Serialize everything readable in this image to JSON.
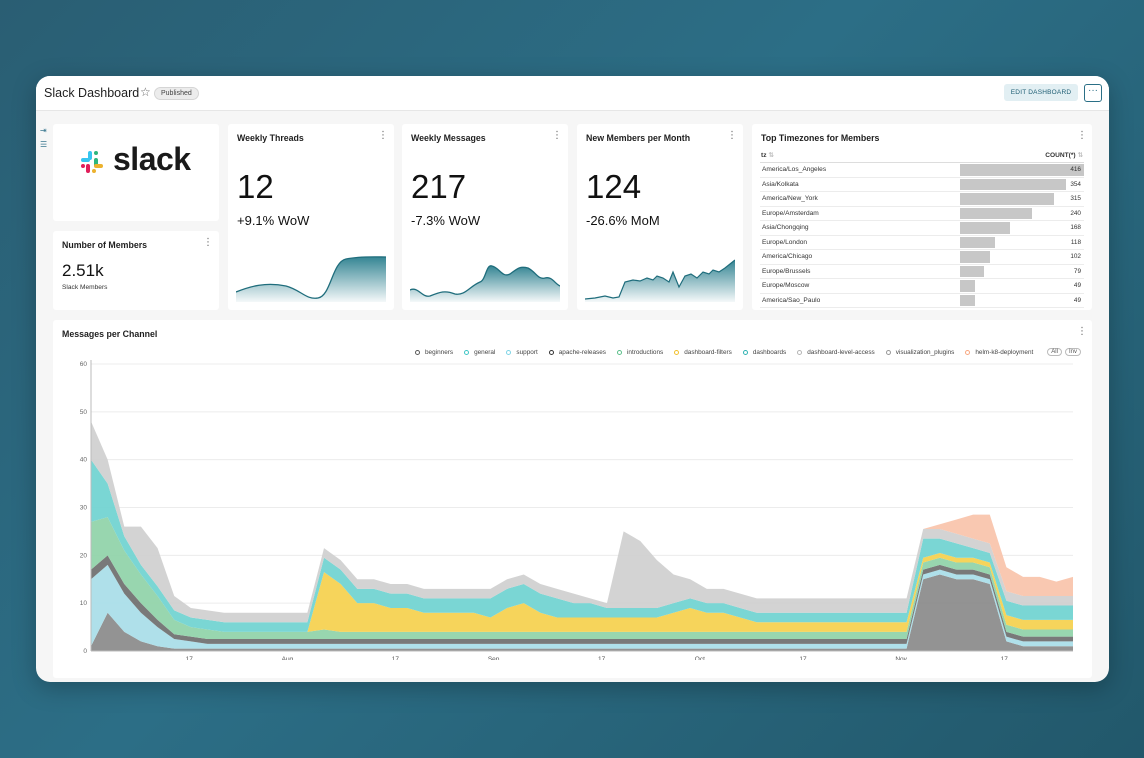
{
  "header": {
    "title": "Slack Dashboard",
    "badge": "Published",
    "edit_label": "EDIT DASHBOARD",
    "more_label": "···"
  },
  "logo": {
    "wordmark": "slack"
  },
  "members_card": {
    "title": "Number of Members",
    "value": "2.51k",
    "caption": "Slack Members"
  },
  "weekly_threads": {
    "title": "Weekly Threads",
    "value": "12",
    "change": "+9.1% WoW"
  },
  "weekly_messages": {
    "title": "Weekly Messages",
    "value": "217",
    "change": "-7.3% WoW"
  },
  "new_members": {
    "title": "New Members per Month",
    "value": "124",
    "change": "-26.6% MoM"
  },
  "timezones": {
    "title": "Top Timezones for Members",
    "col_tz": "tz",
    "col_count": "COUNT(*)",
    "max": 416,
    "rows": [
      {
        "tz": "America/Los_Angeles",
        "count": "416",
        "n": 416
      },
      {
        "tz": "Asia/Kolkata",
        "count": "354",
        "n": 354
      },
      {
        "tz": "America/New_York",
        "count": "315",
        "n": 315
      },
      {
        "tz": "Europe/Amsterdam",
        "count": "240",
        "n": 240
      },
      {
        "tz": "Asia/Chongqing",
        "count": "168",
        "n": 168
      },
      {
        "tz": "Europe/London",
        "count": "118",
        "n": 118
      },
      {
        "tz": "America/Chicago",
        "count": "102",
        "n": 102
      },
      {
        "tz": "Europe/Brussels",
        "count": "79",
        "n": 79
      },
      {
        "tz": "Europe/Moscow",
        "count": "49",
        "n": 49
      },
      {
        "tz": "America/Sao_Paulo",
        "count": "49",
        "n": 49
      }
    ]
  },
  "messages_chart": {
    "title": "Messages per Channel",
    "legend_all": "All",
    "legend_inv": "Inv",
    "legend": [
      {
        "name": "beginners",
        "color": "#5a5a5a"
      },
      {
        "name": "general",
        "color": "#3fc6c6"
      },
      {
        "name": "support",
        "color": "#7fd4e6"
      },
      {
        "name": "apache-releases",
        "color": "#333333"
      },
      {
        "name": "introductions",
        "color": "#5bbf8a"
      },
      {
        "name": "dashboard-filters",
        "color": "#f2c12e"
      },
      {
        "name": "dashboards",
        "color": "#2fb3b3"
      },
      {
        "name": "dashboard-level-access",
        "color": "#b5b5b5"
      },
      {
        "name": "visualization_plugins",
        "color": "#999999"
      },
      {
        "name": "helm-k8-deployment",
        "color": "#f8a882"
      }
    ]
  },
  "chart_data": [
    {
      "type": "area",
      "title": "Messages per Channel",
      "y_ticks": [
        "0",
        "10",
        "20",
        "30",
        "40",
        "50",
        "60"
      ],
      "x_ticks": [
        "17",
        "Aug",
        "17",
        "Sep",
        "17",
        "Oct",
        "17",
        "Nov",
        "17"
      ],
      "ylim": [
        0,
        60
      ],
      "legend_position": "top-right",
      "series": [
        {
          "name": "beginners",
          "color": "#8a8a8a",
          "values": [
            1,
            8,
            4,
            2,
            1,
            0.5,
            0.5,
            0.5,
            0.5,
            0.5,
            0.5,
            0.5,
            0.5,
            0.5,
            0.5,
            0.5,
            0.5,
            0.5,
            0.5,
            0.5,
            0.5,
            0.5,
            0.5,
            0.5,
            0.5,
            0.5,
            0.5,
            0.5,
            0.5,
            0.5,
            0.5,
            0.5,
            0.5,
            0.5,
            0.5,
            0.5,
            0.5,
            0.5,
            0.5,
            0.5,
            0.5,
            0.5,
            0.5,
            0.5,
            0.5,
            0.5,
            0.5,
            0.5,
            0.5,
            0.5,
            15,
            16,
            15,
            15,
            14,
            2,
            1,
            1,
            1,
            1
          ]
        },
        {
          "name": "support",
          "color": "#a8dde8",
          "values": [
            14,
            10,
            8,
            6,
            4,
            2,
            1.5,
            1,
            1,
            1,
            1,
            1,
            1,
            1,
            1,
            1,
            1,
            1,
            1,
            1,
            1,
            1,
            1,
            1,
            1,
            1,
            1,
            1,
            1,
            1,
            1,
            1,
            1,
            1,
            1,
            1,
            1,
            1,
            1,
            1,
            1,
            1,
            1,
            1,
            1,
            1,
            1,
            1,
            1,
            1,
            1,
            1,
            1,
            1,
            1,
            1,
            1,
            1,
            1,
            1
          ]
        },
        {
          "name": "apache-releases",
          "color": "#6e6e6e",
          "values": [
            2,
            2,
            2,
            2,
            1.5,
            1,
            1,
            1,
            1,
            1,
            1,
            1,
            1,
            1,
            1,
            1,
            1,
            1,
            1,
            1,
            1,
            1,
            1,
            1,
            1,
            1,
            1,
            1,
            1,
            1,
            1,
            1,
            1,
            1,
            1,
            1,
            1,
            1,
            1,
            1,
            1,
            1,
            1,
            1,
            1,
            1,
            1,
            1,
            1,
            1,
            1,
            1,
            1,
            1,
            1,
            1,
            1,
            1,
            1,
            1
          ]
        },
        {
          "name": "introductions",
          "color": "#8fd3a8",
          "values": [
            10,
            8,
            7,
            6,
            5,
            3,
            2,
            2,
            1.5,
            1.5,
            1.5,
            1.5,
            1.5,
            1.5,
            2,
            1.5,
            1.5,
            1.5,
            1.5,
            1.5,
            1.5,
            1.5,
            1.5,
            1.5,
            1.5,
            1.5,
            1.5,
            1.5,
            1.5,
            1.5,
            1.5,
            1.5,
            1.5,
            1.5,
            1.5,
            1.5,
            1.5,
            1.5,
            1.5,
            1.5,
            1.5,
            1.5,
            1.5,
            1.5,
            1.5,
            1.5,
            1.5,
            1.5,
            1.5,
            1.5,
            1.5,
            1.5,
            1.5,
            1.5,
            1.5,
            1.5,
            1.5,
            1.5,
            1.5,
            1.5
          ]
        },
        {
          "name": "dashboard-filters",
          "color": "#f5d04d",
          "values": [
            0,
            0,
            0,
            0,
            0,
            0,
            0,
            0,
            0,
            0,
            0,
            0,
            0,
            0,
            12,
            10,
            6,
            6,
            5,
            5,
            4,
            4,
            4,
            4,
            3,
            5,
            6,
            4,
            3,
            3,
            3,
            3,
            3,
            3,
            3,
            4,
            5,
            4,
            4,
            3,
            2,
            2,
            2,
            2,
            2,
            2,
            2,
            2,
            2,
            2,
            1,
            1,
            1,
            1,
            1,
            2,
            2,
            2,
            2,
            2
          ]
        },
        {
          "name": "general",
          "color": "#6fd3d0",
          "values": [
            13,
            7,
            3,
            2,
            2,
            2,
            2,
            2,
            2,
            2,
            2,
            2,
            2,
            2,
            3,
            3,
            3,
            3,
            3,
            3,
            3,
            3,
            3,
            3,
            4,
            4,
            4,
            4,
            4,
            3,
            3,
            2,
            2,
            2,
            2,
            2,
            2,
            2,
            2,
            2,
            2,
            2,
            2,
            2,
            2,
            2,
            2,
            2,
            2,
            2,
            4,
            3,
            3,
            2,
            2,
            3,
            3,
            3,
            3,
            3
          ]
        },
        {
          "name": "dashboard-level-access",
          "color": "#cfcfcf",
          "values": [
            8,
            5,
            2,
            8,
            8,
            3,
            2,
            2,
            2,
            2,
            2,
            2,
            2,
            2,
            2,
            2,
            2,
            2,
            2,
            2,
            2,
            2,
            2,
            2,
            2,
            2,
            2,
            2,
            2,
            2,
            1,
            1,
            16,
            14,
            10,
            6,
            4,
            3,
            3,
            3,
            3,
            3,
            3,
            3,
            3,
            3,
            3,
            3,
            3,
            3,
            2,
            2,
            2,
            2,
            2,
            2,
            2,
            2,
            2,
            2
          ]
        },
        {
          "name": "helm-k8-deployment",
          "color": "#f9c3aa",
          "values": [
            0,
            0,
            0,
            0,
            0,
            0,
            0,
            0,
            0,
            0,
            0,
            0,
            0,
            0,
            0,
            0,
            0,
            0,
            0,
            0,
            0,
            0,
            0,
            0,
            0,
            0,
            0,
            0,
            0,
            0,
            0,
            0,
            0,
            0,
            0,
            0,
            0,
            0,
            0,
            0,
            0,
            0,
            0,
            0,
            0,
            0,
            0,
            0,
            0,
            0,
            0,
            1,
            3,
            5,
            6,
            5,
            4,
            4,
            3,
            4
          ]
        }
      ]
    }
  ]
}
